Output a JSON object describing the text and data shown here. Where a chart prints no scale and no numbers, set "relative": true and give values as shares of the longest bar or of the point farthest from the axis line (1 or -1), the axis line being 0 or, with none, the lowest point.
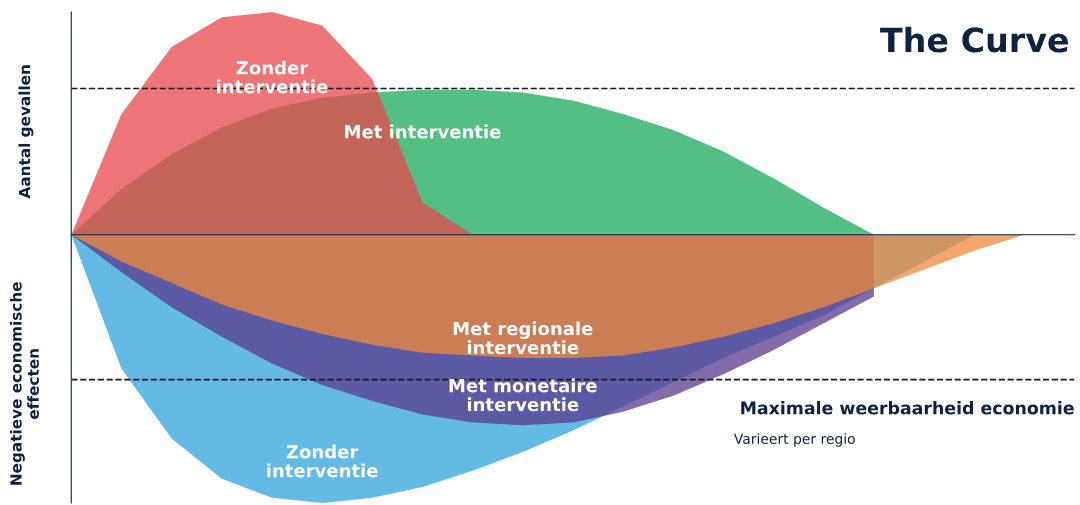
{
  "chart_data": {
    "type": "area",
    "title": "The Curve",
    "ylabel": "Aantal gevallen",
    "relative": true,
    "legend": false,
    "categories": [
      null,
      null,
      null,
      null,
      null,
      null,
      null,
      null,
      null,
      null,
      null,
      null,
      null,
      null,
      null,
      null,
      null,
      null,
      null,
      null,
      null
    ],
    "series": [
      {
        "name": "Zonder\ninterventie",
        "color": "#2ea3dc",
        "values": [
          0,
          -0.5,
          -0.76,
          -0.91,
          -0.98,
          -1.0,
          -0.98,
          -0.94,
          -0.88,
          -0.81,
          -0.73,
          -0.64,
          -0.55,
          -0.46,
          -0.38,
          -0.3,
          -0.2,
          -0.1,
          0,
          null,
          null
        ]
      },
      {
        "name": "Met monetaire\ninterventie",
        "color": "#5b3a8e",
        "values": [
          0,
          -0.14,
          -0.27,
          -0.38,
          -0.48,
          -0.56,
          -0.62,
          -0.67,
          -0.7,
          -0.71,
          -0.7,
          -0.66,
          -0.6,
          -0.52,
          -0.43,
          -0.33,
          -0.23,
          null,
          null,
          null,
          null
        ]
      },
      {
        "name": "Met regionale\ninterventie",
        "color": "#f08a3c",
        "values": [
          0,
          -0.1,
          -0.18,
          -0.26,
          -0.32,
          -0.37,
          -0.41,
          -0.44,
          -0.45,
          -0.46,
          -0.46,
          -0.45,
          -0.42,
          -0.38,
          -0.33,
          -0.27,
          -0.2,
          -0.13,
          -0.06,
          0,
          null
        ]
      },
      {
        "name": "Met interventie",
        "color": "#1aa95b",
        "values": [
          0,
          0.17,
          0.3,
          0.4,
          0.47,
          0.51,
          0.53,
          0.54,
          0.54,
          0.53,
          0.5,
          0.45,
          0.39,
          0.31,
          0.21,
          0.1,
          0,
          null,
          null,
          null,
          null
        ]
      },
      {
        "name": "Zonder\ninterventie",
        "color": "#e8474a",
        "values": [
          0,
          0.45,
          0.7,
          0.81,
          0.83,
          0.78,
          0.58,
          0.12,
          0,
          null,
          null,
          null,
          null,
          null,
          null,
          null,
          null,
          null,
          null,
          null,
          null
        ]
      }
    ],
    "ref_lines": [
      {
        "axis": "y",
        "value": 0.545,
        "label": null,
        "color": "#1a1a1a",
        "line_style": "dashed"
      },
      {
        "axis": "y",
        "value": -0.54,
        "label": "Maximale weerbaarheid economie",
        "color": "#1a1a1a",
        "line_style": "dashed"
      }
    ],
    "annotations": [
      "Varieert per regio",
      "Negatieve economische\neffecten"
    ]
  }
}
